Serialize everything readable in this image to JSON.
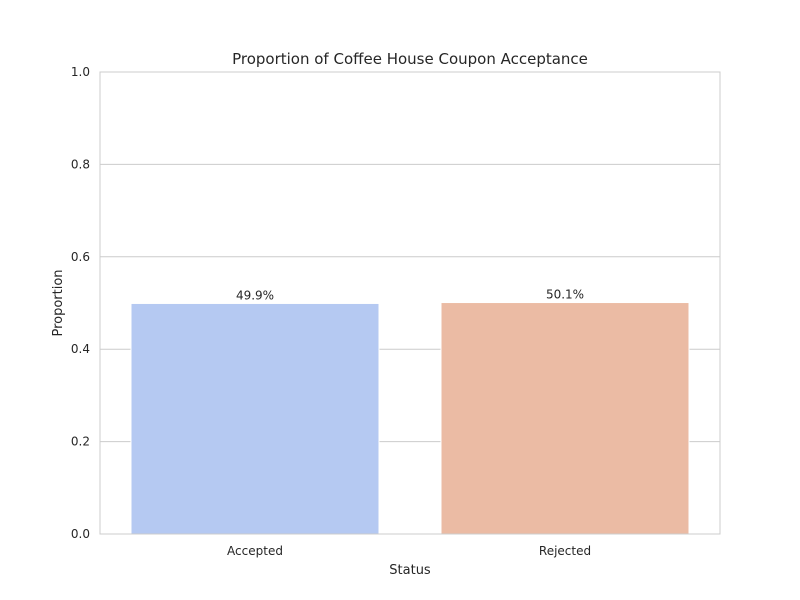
{
  "chart_data": {
    "type": "bar",
    "title": "Proportion of Coffee House Coupon Acceptance",
    "xlabel": "Status",
    "ylabel": "Proportion",
    "categories": [
      "Accepted",
      "Rejected"
    ],
    "values": [
      0.499,
      0.501
    ],
    "data_labels": [
      "49.9%",
      "50.1%"
    ],
    "colors": [
      "#b5c9f2",
      "#ebbba4"
    ],
    "ylim": [
      0,
      1.0
    ],
    "yticks": [
      0.0,
      0.2,
      0.4,
      0.6,
      0.8,
      1.0
    ],
    "ytick_labels": [
      "0.0",
      "0.2",
      "0.4",
      "0.6",
      "0.8",
      "1.0"
    ],
    "grid": true,
    "grid_color": "#cccccc",
    "spine_color": "#cccccc"
  }
}
